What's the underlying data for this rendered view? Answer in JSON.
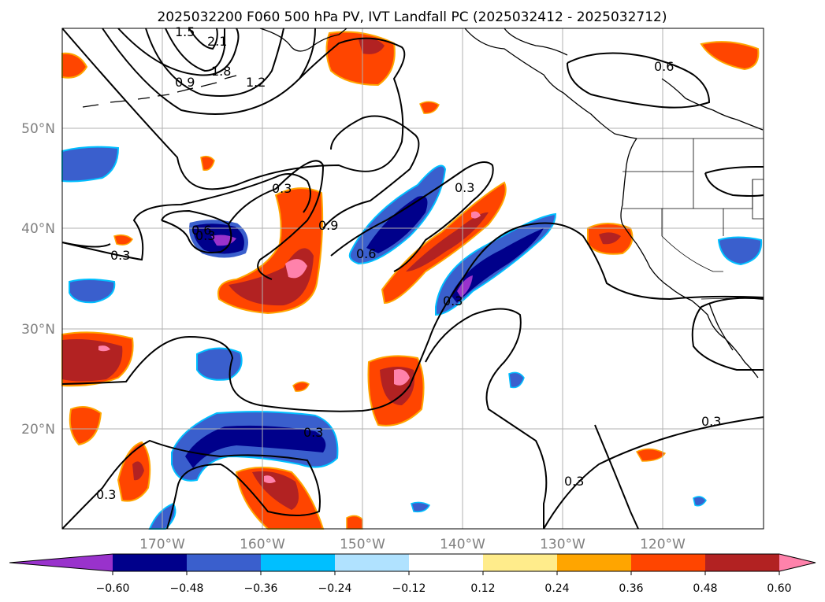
{
  "title": "2025032200 F060 500 hPa PV, IVT Landfall PC (2025032412 - 2025032712)",
  "map": {
    "lat_labels": [
      "50°N",
      "40°N",
      "30°N",
      "20°N"
    ],
    "lon_labels": [
      "170°W",
      "160°W",
      "150°W",
      "140°W",
      "130°W",
      "120°W"
    ],
    "contour_labels": [
      "2.1",
      "1.8",
      "1.5",
      "1.2",
      "0.9",
      "0.6",
      "0.3",
      "0.3",
      "0.9",
      "0.6",
      "0.3",
      "0.3",
      "0.3",
      "0.6",
      "0.3",
      "0.3",
      "0.3",
      "0.3"
    ]
  },
  "colorbar": {
    "ticks": [
      "−0.60",
      "−0.48",
      "−0.36",
      "−0.24",
      "−0.12",
      "0.12",
      "0.24",
      "0.36",
      "0.48",
      "0.60"
    ],
    "colors": [
      "#9932cc",
      "#00008b",
      "#3a5fcd",
      "#00bfff",
      "#b0e2ff",
      "#ffffff",
      "#ffec8b",
      "#ffa500",
      "#ff4500",
      "#b22222",
      "#ff82ab"
    ]
  },
  "colors": {
    "purple": "#9932cc",
    "navy": "#00008b",
    "blue": "#3a5fcd",
    "cyan": "#00bfff",
    "light_blue": "#b0e2ff",
    "yellow": "#ffec8b",
    "orange": "#ffa500",
    "red_orange": "#ff4500",
    "dark_red": "#b22222",
    "pink": "#ff82ab"
  }
}
